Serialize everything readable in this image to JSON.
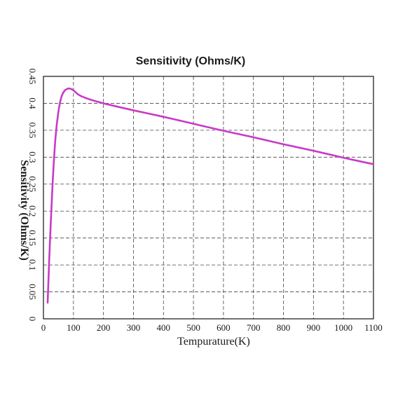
{
  "chart_data": {
    "type": "line",
    "title": "Sensitivity (Ohms/K)",
    "xlabel": "Tempurature(K)",
    "ylabel": "Sensitivity (Ohms/K)",
    "xlim": [
      0,
      1100
    ],
    "ylim": [
      0,
      0.45
    ],
    "xticks": [
      0,
      100,
      200,
      300,
      400,
      500,
      600,
      700,
      800,
      900,
      1000,
      1100
    ],
    "yticks": [
      "0",
      "0.05",
      "0.1",
      "0.15",
      "0.2",
      "0.25",
      "0.3",
      "0.35",
      "0.4",
      "0.45"
    ],
    "grid": true,
    "line_color": "#c83ac8",
    "series": [
      {
        "x": [
          14,
          20,
          30,
          40,
          50,
          60,
          70,
          80,
          90,
          100,
          120,
          150,
          200,
          300,
          400,
          500,
          600,
          700,
          800,
          900,
          1000,
          1100
        ],
        "y": [
          0.03,
          0.12,
          0.245,
          0.335,
          0.385,
          0.412,
          0.423,
          0.427,
          0.427,
          0.424,
          0.415,
          0.408,
          0.4,
          0.387,
          0.375,
          0.362,
          0.349,
          0.337,
          0.324,
          0.312,
          0.299,
          0.287
        ]
      }
    ]
  }
}
